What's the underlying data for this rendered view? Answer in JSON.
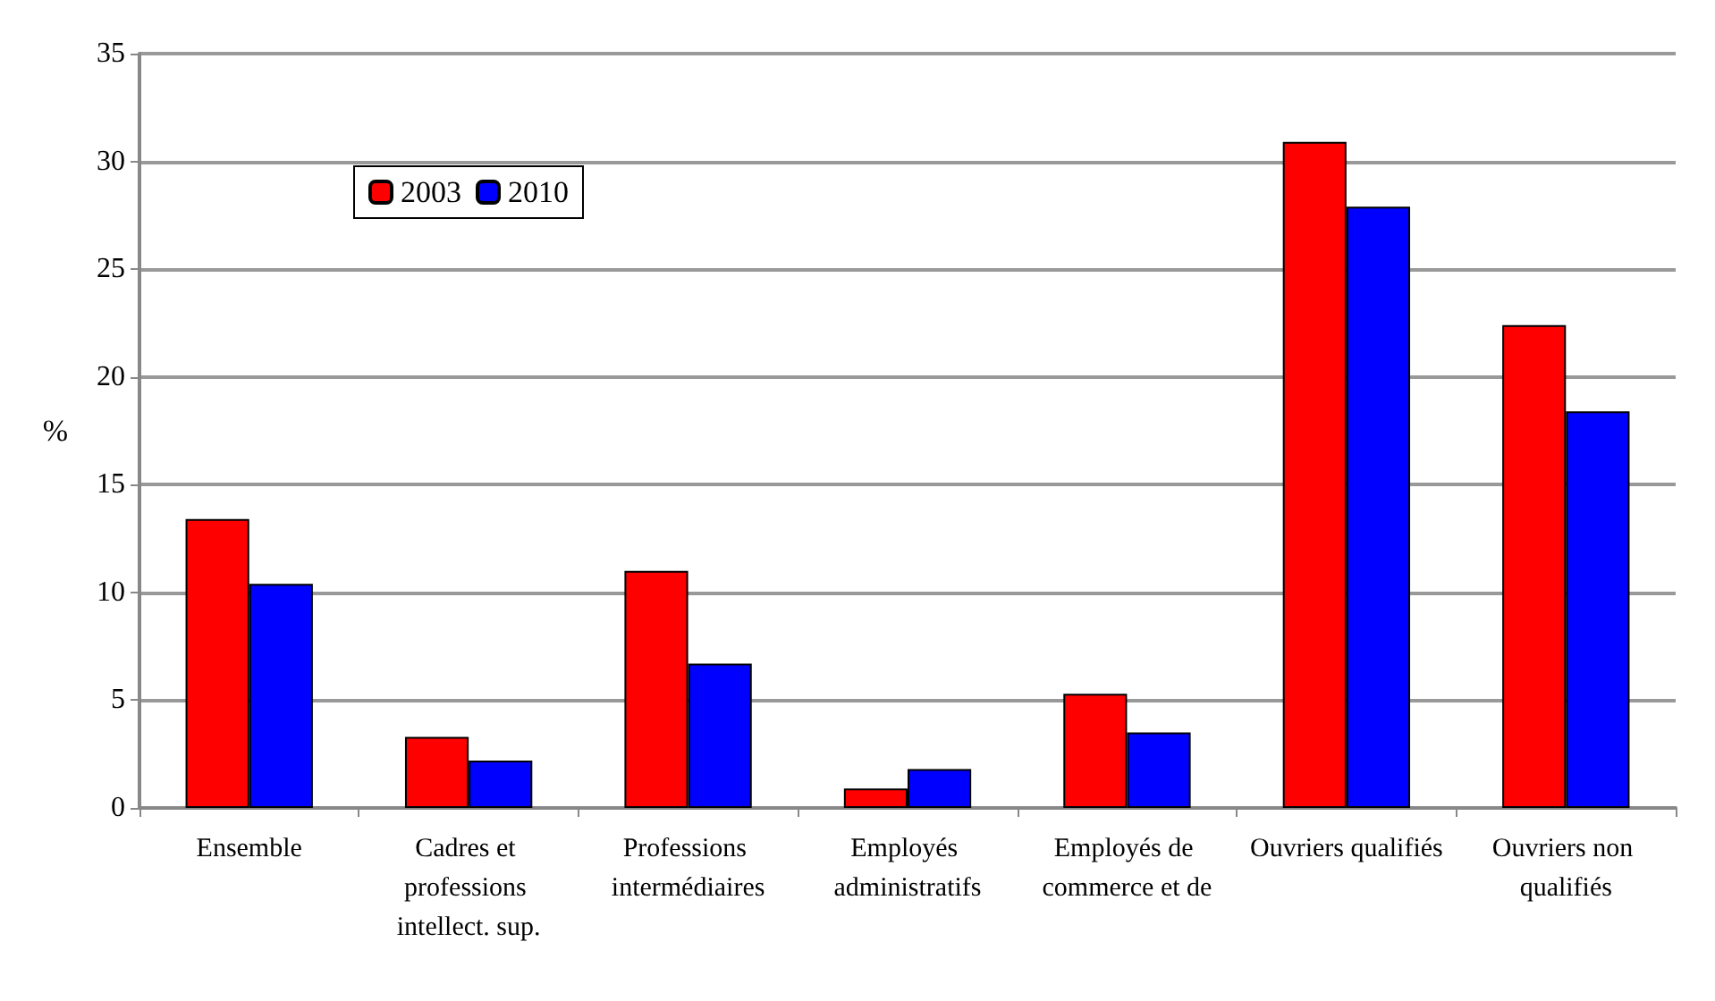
{
  "chart_data": {
    "type": "bar",
    "ylabel": "%",
    "categories": [
      "Ensemble",
      "Cadres et professions intellect. sup.",
      "Professions intermédiaires",
      "Employés administratifs",
      "Employés de commerce et de",
      "Ouvriers qualifiés",
      "Ouvriers non qualifiés"
    ],
    "series": [
      {
        "name": "2003",
        "color": "#ff0000",
        "values": [
          13.4,
          3.3,
          11.0,
          0.9,
          5.3,
          30.9,
          22.4
        ]
      },
      {
        "name": "2010",
        "color": "#0000ff",
        "values": [
          10.4,
          2.2,
          6.7,
          1.8,
          3.5,
          27.9,
          18.4
        ]
      }
    ],
    "ylim": [
      0,
      35
    ],
    "yticks": [
      0,
      5,
      10,
      15,
      20,
      25,
      30,
      35
    ],
    "grid": "y",
    "legend": "top left"
  }
}
